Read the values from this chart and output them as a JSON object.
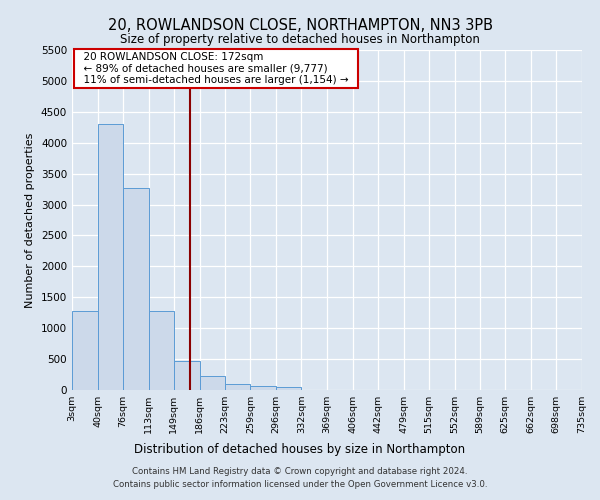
{
  "title": "20, ROWLANDSON CLOSE, NORTHAMPTON, NN3 3PB",
  "subtitle": "Size of property relative to detached houses in Northampton",
  "xlabel": "Distribution of detached houses by size in Northampton",
  "ylabel": "Number of detached properties",
  "footer_line1": "Contains HM Land Registry data © Crown copyright and database right 2024.",
  "footer_line2": "Contains public sector information licensed under the Open Government Licence v3.0.",
  "annotation_line1": "20 ROWLANDSON CLOSE: 172sqm",
  "annotation_line2": "← 89% of detached houses are smaller (9,777)",
  "annotation_line3": "11% of semi-detached houses are larger (1,154) →",
  "bar_edges": [
    3,
    40,
    76,
    113,
    149,
    186,
    223,
    259,
    296,
    332,
    369,
    406,
    442,
    479,
    515,
    552,
    589,
    625,
    662,
    698,
    735
  ],
  "bar_heights": [
    1270,
    4300,
    3270,
    1270,
    470,
    230,
    105,
    65,
    55,
    0,
    0,
    0,
    0,
    0,
    0,
    0,
    0,
    0,
    0,
    0
  ],
  "vline_x": 172,
  "ylim": [
    0,
    5500
  ],
  "yticks": [
    0,
    500,
    1000,
    1500,
    2000,
    2500,
    3000,
    3500,
    4000,
    4500,
    5000,
    5500
  ],
  "bar_color": "#ccd9ea",
  "bar_edge_color": "#5b9bd5",
  "vline_color": "#8b0000",
  "background_color": "#dce6f1",
  "grid_color": "#ffffff",
  "annotation_box_edge": "#cc0000"
}
